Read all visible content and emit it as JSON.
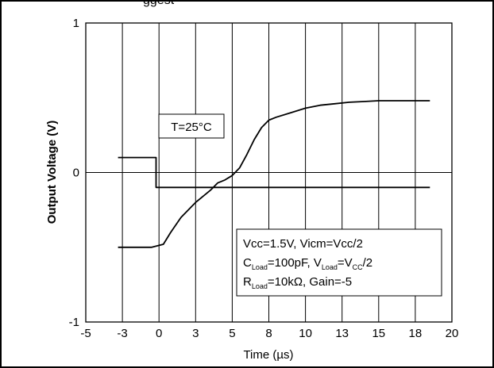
{
  "header": {
    "partial_text": "ggest"
  },
  "chart_data": {
    "type": "line",
    "xlabel": "Time (µs)",
    "ylabel": "Output Voltage (V)",
    "xlim": [
      -5,
      20
    ],
    "ylim": [
      -1,
      1
    ],
    "x_tick_labels": [
      "-5",
      "-3",
      "0",
      "3",
      "5",
      "8",
      "10",
      "13",
      "15",
      "18",
      "20"
    ],
    "y_tick_labels": [
      "-1",
      "0",
      "1"
    ],
    "grid": true,
    "annotations": {
      "temperature": "T=25°C",
      "conditions_line1": "Vcc=1.5V, Vicm=Vcc/2",
      "conditions_line2": [
        "C",
        "Load",
        "=100pF, V",
        "Load",
        "=V",
        "CC",
        "/2"
      ],
      "conditions_line3": [
        "R",
        "Load",
        "=10kΩ, Gain=-5"
      ]
    },
    "series": [
      {
        "x": [
          -2.8,
          -0.2,
          -0.2,
          0.2,
          1.0,
          2.0,
          3.0,
          4.0,
          5.0,
          6.0,
          7.0,
          8.0,
          9.0,
          10.0,
          11.0,
          12.0,
          13.0,
          14.0,
          15.0,
          16.0,
          17.0,
          18.0,
          18.5
        ],
        "y": [
          0.1,
          0.1,
          -0.1,
          -0.1,
          -0.1,
          -0.1,
          -0.1,
          -0.1,
          -0.1,
          -0.1,
          -0.1,
          -0.1,
          -0.1,
          -0.1,
          -0.1,
          -0.1,
          -0.1,
          -0.1,
          -0.1,
          -0.1,
          -0.1,
          -0.1,
          -0.1
        ]
      },
      {
        "x": [
          -2.8,
          -1.5,
          -0.5,
          0.3,
          0.8,
          1.5,
          2.5,
          3.5,
          4.0,
          4.5,
          5.0,
          5.5,
          6.0,
          6.5,
          7.0,
          7.5,
          8.0,
          9.0,
          10.0,
          11.0,
          12.0,
          13.0,
          14.0,
          15.0,
          16.0,
          17.0,
          18.5
        ],
        "y": [
          -0.5,
          -0.5,
          -0.5,
          -0.48,
          -0.4,
          -0.3,
          -0.2,
          -0.12,
          -0.07,
          -0.05,
          -0.02,
          0.03,
          0.12,
          0.22,
          0.3,
          0.35,
          0.37,
          0.4,
          0.43,
          0.45,
          0.46,
          0.47,
          0.475,
          0.48,
          0.48,
          0.48,
          0.48
        ]
      }
    ]
  }
}
